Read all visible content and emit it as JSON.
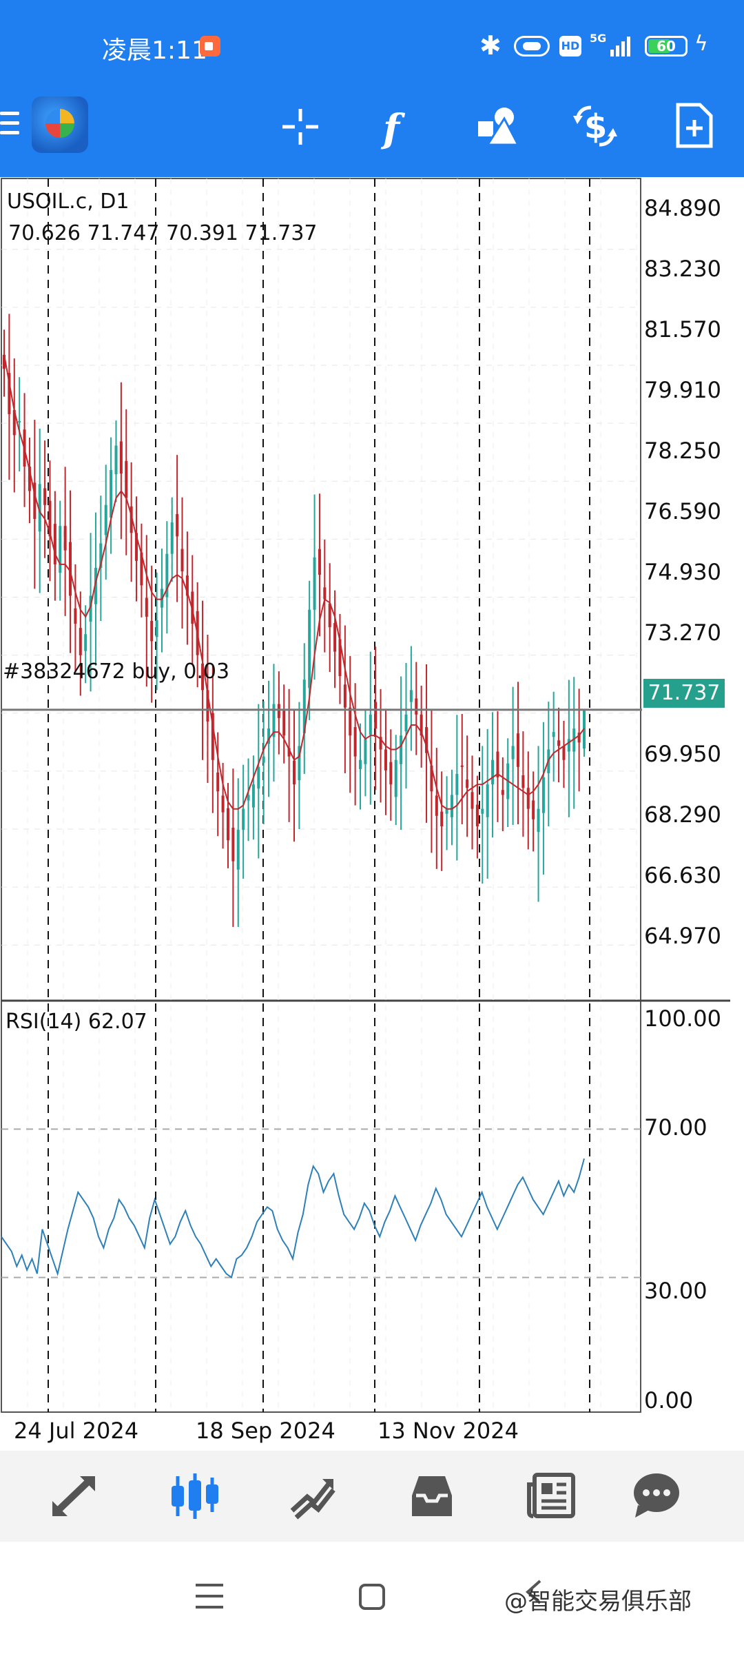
{
  "status_bar": {
    "time": "凌晨1:11",
    "network": "5G",
    "hd": "HD",
    "battery": "60",
    "icons": [
      "screen-record-icon",
      "bluetooth-icon",
      "vibrate-icon",
      "hd-icon",
      "signal-icon",
      "battery-icon",
      "charging-icon"
    ]
  },
  "toolbar": {
    "icons": [
      "menu-icon",
      "app-logo",
      "crosshair-icon",
      "indicators-icon",
      "objects-icon",
      "trade-icon",
      "new-order-icon"
    ]
  },
  "chart": {
    "symbol": "USOIL.c, D1",
    "ohlc": "70.626 71.747 70.391 71.737",
    "order_label": "#38324672 buy, 0.03",
    "current_price": "71.737",
    "rsi_label": "RSI(14) 62.07",
    "y_labels": [
      "84.890",
      "83.230",
      "81.570",
      "79.910",
      "78.250",
      "76.590",
      "74.930",
      "73.270",
      "69.950",
      "68.290",
      "66.630",
      "64.970"
    ],
    "rsi_levels": [
      "100.00",
      "70.00",
      "30.00",
      "0.00"
    ],
    "x_labels": [
      "24 Jul 2024",
      "18 Sep 2024",
      "13 Nov 2024"
    ]
  },
  "chart_data": {
    "type": "candlestick",
    "symbol": "USOIL.c",
    "timeframe": "D1",
    "ylim": [
      64.0,
      86.0
    ],
    "last": {
      "open": 70.626,
      "high": 71.747,
      "low": 70.391,
      "close": 71.737
    },
    "order_line": 71.737,
    "closes": [
      81.5,
      80.2,
      79.6,
      80.0,
      78.7,
      78.0,
      77.2,
      78.2,
      77.6,
      76.7,
      75.9,
      77.0,
      76.3,
      75.0,
      74.2,
      73.3,
      73.9,
      75.0,
      75.8,
      76.5,
      77.6,
      78.6,
      79.3,
      78.5,
      77.8,
      76.8,
      76.0,
      75.3,
      74.4,
      73.7,
      74.3,
      75.2,
      76.2,
      77.1,
      76.7,
      75.7,
      75.0,
      74.2,
      73.3,
      72.3,
      71.4,
      70.3,
      69.4,
      68.8,
      68.0,
      67.4,
      68.3,
      68.9,
      69.3,
      69.6,
      70.1,
      70.4,
      71.2,
      71.9,
      71.5,
      71.0,
      70.4,
      69.6,
      70.7,
      72.6,
      74.6,
      76.1,
      75.6,
      74.9,
      74.1,
      73.4,
      72.7,
      71.8,
      71.0,
      70.4,
      70.3,
      70.9,
      71.6,
      71.2,
      70.6,
      70.0,
      69.6,
      70.3,
      71.0,
      71.6,
      72.3,
      71.6,
      71.0,
      70.5,
      69.4,
      68.7,
      68.4,
      68.9,
      69.3,
      69.9,
      70.1,
      69.5,
      68.9,
      68.4,
      68.9,
      69.6,
      70.3,
      69.8,
      69.3,
      70.2,
      70.7,
      70.1,
      69.5,
      68.9,
      68.6,
      68.9,
      69.8,
      70.6,
      71.1,
      70.7,
      70.3,
      70.9,
      71.2,
      70.8,
      71.737
    ],
    "ma_color": "#c0272d",
    "ma": [
      81.9,
      81.1,
      80.3,
      79.7,
      79.2,
      78.6,
      77.9,
      77.4,
      77.2,
      76.8,
      76.2,
      75.9,
      75.9,
      75.7,
      75.1,
      74.6,
      74.4,
      74.7,
      75.4,
      75.9,
      76.5,
      77.2,
      77.8,
      78.0,
      77.8,
      77.3,
      76.7,
      76.2,
      75.6,
      75.1,
      74.9,
      74.9,
      75.2,
      75.5,
      75.6,
      75.5,
      75.1,
      74.6,
      73.9,
      73.1,
      72.2,
      71.3,
      70.4,
      69.6,
      69.1,
      68.9,
      68.9,
      69.0,
      69.4,
      69.8,
      70.2,
      70.6,
      70.9,
      71.1,
      71.1,
      70.9,
      70.6,
      70.3,
      70.4,
      71.1,
      72.1,
      73.3,
      74.3,
      74.9,
      74.8,
      74.4,
      73.7,
      72.9,
      72.2,
      71.6,
      71.1,
      70.9,
      71.0,
      71.0,
      70.9,
      70.7,
      70.6,
      70.6,
      70.7,
      71.0,
      71.3,
      71.3,
      71.1,
      70.7,
      70.1,
      69.5,
      69.0,
      68.9,
      68.9,
      69.0,
      69.2,
      69.4,
      69.5,
      69.6,
      69.6,
      69.7,
      69.8,
      69.9,
      69.8,
      69.7,
      69.6,
      69.5,
      69.4,
      69.3,
      69.4,
      69.6,
      69.9,
      70.3,
      70.5,
      70.6,
      70.7,
      70.8,
      70.9,
      71.0,
      71.2
    ],
    "rsi": {
      "name": "RSI(14)",
      "last": 62.07,
      "levels": [
        70,
        30
      ],
      "ylim": [
        0,
        100
      ],
      "line_color": "#2d7fb8",
      "values": [
        41,
        39,
        37,
        33,
        36,
        32,
        35,
        31,
        43,
        39,
        35,
        31,
        37,
        43,
        48,
        53,
        51,
        49,
        46,
        41,
        38,
        43,
        46,
        51,
        49,
        46,
        44,
        41,
        38,
        46,
        51,
        47,
        43,
        39,
        41,
        45,
        48,
        44,
        41,
        39,
        36,
        33,
        35,
        33,
        31,
        30,
        35,
        36,
        38,
        41,
        45,
        47,
        49,
        48,
        43,
        40,
        38,
        35,
        42,
        47,
        55,
        60,
        58,
        53,
        56,
        58,
        52,
        47,
        45,
        43,
        46,
        50,
        48,
        44,
        41,
        45,
        48,
        52,
        49,
        46,
        43,
        40,
        44,
        47,
        50,
        54,
        51,
        47,
        45,
        43,
        41,
        44,
        47,
        50,
        53,
        49,
        46,
        43,
        46,
        49,
        52,
        55,
        57,
        54,
        51,
        49,
        47,
        50,
        53,
        56,
        52,
        55,
        53,
        57,
        62.07
      ]
    }
  },
  "bottom_nav": {
    "items": [
      "quotes-tab",
      "chart-tab",
      "trade-tab",
      "history-tab",
      "news-tab",
      "messages-tab"
    ],
    "active": "chart-tab",
    "active_color": "#1f7ef0"
  },
  "system_nav": {
    "watermark": "@智能交易俱乐部"
  }
}
